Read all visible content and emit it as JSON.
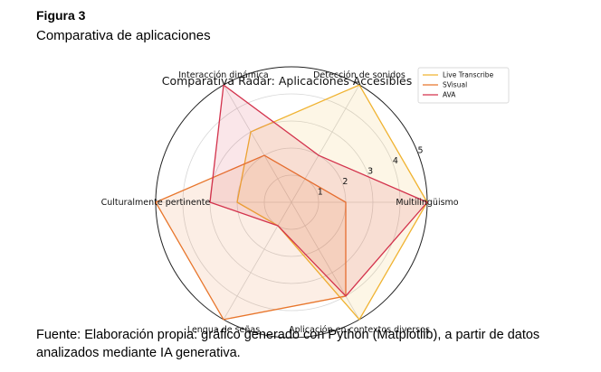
{
  "figure": {
    "label": "Figura 3",
    "title": "Comparativa de aplicaciones",
    "source": "Fuente: Elaboración propia: gráfico generado con Python (Matplotlib), a partir de datos analizados mediante IA generativa."
  },
  "chart_data": {
    "type": "radar",
    "title": "Comparativa Radar: Aplicaciones Accesibles",
    "categories": [
      "Multilingüismo",
      "Detección de sonidos",
      "Interacción dinámica",
      "Culturalmente pertinente",
      "Lengua de señas",
      "Aplicación en contextos diversos"
    ],
    "r_ticks": [
      "1",
      "2",
      "3",
      "4",
      "5"
    ],
    "rlim": [
      0,
      5
    ],
    "grid": true,
    "legend_position": "top-right",
    "series": [
      {
        "name": "Live Transcribe",
        "color": "#f0b331",
        "values": [
          5,
          5,
          3,
          2,
          1,
          5
        ]
      },
      {
        "name": "SVisual",
        "color": "#e8762c",
        "values": [
          2,
          1,
          2,
          5,
          5,
          4
        ]
      },
      {
        "name": "AVA",
        "color": "#d3324c",
        "values": [
          5,
          2,
          5,
          3,
          1,
          4
        ]
      }
    ]
  }
}
